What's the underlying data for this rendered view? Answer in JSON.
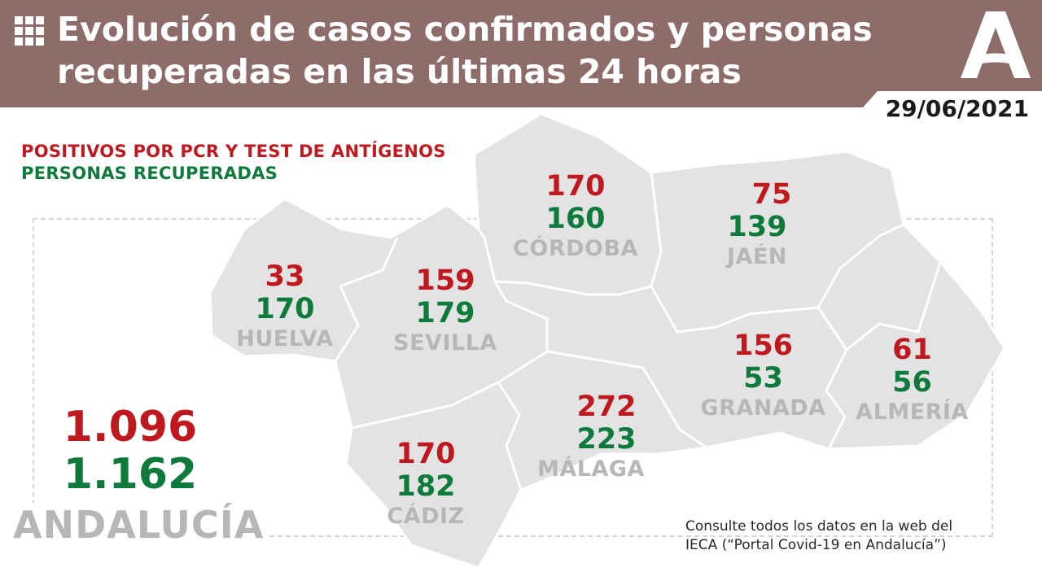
{
  "header": {
    "title_line1": "Evolución de casos confirmados y personas",
    "title_line2": "recuperadas en las últimas 24 horas",
    "date": "29/06/2021"
  },
  "legend": {
    "positives": "POSITIVOS POR PCR Y TEST DE ANTÍGENOS",
    "recovered": "PERSONAS RECUPERADAS"
  },
  "provinces": [
    {
      "name": "HUELVA",
      "positives": "33",
      "recovered": "170"
    },
    {
      "name": "SEVILLA",
      "positives": "159",
      "recovered": "179"
    },
    {
      "name": "CÓRDOBA",
      "positives": "170",
      "recovered": "160"
    },
    {
      "name": "JAÉN",
      "positives": "75",
      "recovered": "139"
    },
    {
      "name": "GRANADA",
      "positives": "156",
      "recovered": "53"
    },
    {
      "name": "ALMERÍA",
      "positives": "61",
      "recovered": "56"
    },
    {
      "name": "MÁLAGA",
      "positives": "272",
      "recovered": "223"
    },
    {
      "name": "CÁDIZ",
      "positives": "170",
      "recovered": "182"
    }
  ],
  "total": {
    "region": "ANDALUCÍA",
    "positives": "1.096",
    "recovered": "1.162"
  },
  "note": {
    "line1": "Consulte todos los datos en la web del",
    "line2": "IECA (“Portal Covid-19 en Andalucía”)"
  },
  "colors": {
    "banner": "#8d6c69",
    "positives": "#c0181f",
    "recovered": "#0e7a3b",
    "map_fill": "#e3e3e3",
    "province_label": "#b7b7b7"
  },
  "icons": {
    "banner_icon": "grid-icon",
    "logo": "junta-andalucia-logo"
  }
}
